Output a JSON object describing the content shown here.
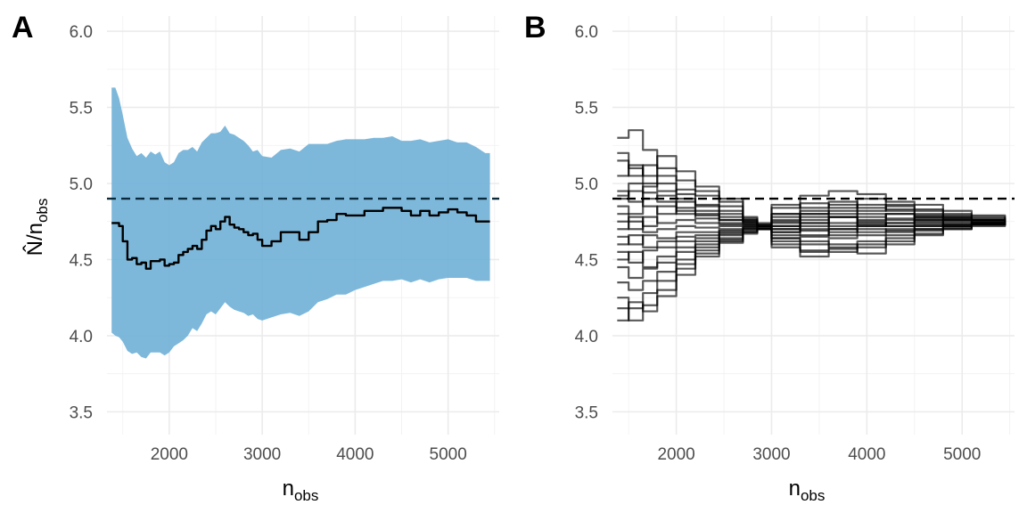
{
  "chart_data": [
    {
      "panel": "A",
      "type": "area",
      "xlabel": "n",
      "xlabel_sub": "obs",
      "ylabel": "N̂/n",
      "ylabel_sub": "obs",
      "xlim": [
        1330,
        5550
      ],
      "ylim": [
        3.35,
        6.1
      ],
      "x_ticks": [
        2000,
        3000,
        4000,
        5000
      ],
      "y_ticks": [
        3.5,
        4.0,
        4.5,
        5.0,
        5.5,
        6.0
      ],
      "x_tick_labels": [
        "2000",
        "3000",
        "4000",
        "5000"
      ],
      "y_tick_labels": [
        "3.5",
        "4.0",
        "4.5",
        "5.0",
        "5.5",
        "6.0"
      ],
      "grid": true,
      "reference_line": {
        "y": 4.9,
        "style": "dashed"
      },
      "band_color": "#6BAED6",
      "line_color": "#000000",
      "x": [
        1380,
        1420,
        1460,
        1500,
        1550,
        1600,
        1650,
        1700,
        1750,
        1800,
        1850,
        1900,
        1950,
        2000,
        2050,
        2100,
        2150,
        2200,
        2250,
        2300,
        2350,
        2400,
        2450,
        2500,
        2550,
        2600,
        2650,
        2700,
        2750,
        2800,
        2850,
        2900,
        2950,
        3000,
        3100,
        3200,
        3300,
        3400,
        3500,
        3600,
        3700,
        3800,
        3900,
        4000,
        4100,
        4200,
        4300,
        4400,
        4500,
        4600,
        4700,
        4800,
        4900,
        5000,
        5100,
        5200,
        5300,
        5400,
        5450
      ],
      "estimate": [
        4.74,
        4.74,
        4.72,
        4.62,
        4.5,
        4.51,
        4.47,
        4.48,
        4.44,
        4.49,
        4.49,
        4.5,
        4.46,
        4.47,
        4.48,
        4.53,
        4.55,
        4.57,
        4.59,
        4.57,
        4.63,
        4.69,
        4.72,
        4.7,
        4.75,
        4.78,
        4.73,
        4.71,
        4.7,
        4.68,
        4.66,
        4.67,
        4.63,
        4.59,
        4.62,
        4.68,
        4.68,
        4.63,
        4.68,
        4.75,
        4.76,
        4.8,
        4.79,
        4.79,
        4.82,
        4.82,
        4.84,
        4.84,
        4.82,
        4.79,
        4.82,
        4.79,
        4.81,
        4.83,
        4.81,
        4.79,
        4.75,
        4.75,
        4.75
      ],
      "upper": [
        5.63,
        5.63,
        5.56,
        5.45,
        5.3,
        5.23,
        5.18,
        5.2,
        5.17,
        5.21,
        5.19,
        5.21,
        5.14,
        5.12,
        5.14,
        5.2,
        5.22,
        5.22,
        5.24,
        5.21,
        5.27,
        5.3,
        5.33,
        5.33,
        5.34,
        5.38,
        5.33,
        5.32,
        5.3,
        5.28,
        5.25,
        5.21,
        5.22,
        5.18,
        5.17,
        5.22,
        5.23,
        5.21,
        5.26,
        5.26,
        5.26,
        5.28,
        5.29,
        5.29,
        5.29,
        5.3,
        5.3,
        5.31,
        5.28,
        5.28,
        5.29,
        5.27,
        5.28,
        5.29,
        5.27,
        5.27,
        5.24,
        5.2,
        5.2
      ],
      "lower": [
        4.02,
        4.0,
        3.99,
        3.96,
        3.9,
        3.88,
        3.89,
        3.86,
        3.85,
        3.89,
        3.89,
        3.89,
        3.87,
        3.89,
        3.93,
        3.95,
        3.97,
        4.0,
        4.05,
        4.03,
        4.08,
        4.14,
        4.16,
        4.14,
        4.18,
        4.22,
        4.19,
        4.17,
        4.16,
        4.15,
        4.13,
        4.14,
        4.11,
        4.1,
        4.12,
        4.14,
        4.15,
        4.13,
        4.16,
        4.22,
        4.24,
        4.27,
        4.27,
        4.3,
        4.32,
        4.34,
        4.36,
        4.36,
        4.37,
        4.35,
        4.37,
        4.35,
        4.37,
        4.38,
        4.38,
        4.38,
        4.36,
        4.36,
        4.36
      ]
    },
    {
      "panel": "B",
      "type": "line",
      "xlabel": "n",
      "xlabel_sub": "obs",
      "xlim": [
        1330,
        5550
      ],
      "ylim": [
        3.35,
        6.1
      ],
      "x_ticks": [
        2000,
        3000,
        4000,
        5000
      ],
      "y_ticks": [
        3.5,
        4.0,
        4.5,
        5.0,
        5.5,
        6.0
      ],
      "x_tick_labels": [
        "2000",
        "3000",
        "4000",
        "5000"
      ],
      "y_tick_labels": [
        "3.5",
        "4.0",
        "4.5",
        "5.0",
        "5.5",
        "6.0"
      ],
      "grid": true,
      "reference_line": {
        "y": 4.9,
        "style": "dashed"
      },
      "line_color": "#000000",
      "line_opacity": 0.65,
      "x": [
        1380,
        1500,
        1650,
        1800,
        2000,
        2200,
        2450,
        2700,
        2850,
        3000,
        3300,
        3600,
        3900,
        4200,
        4500,
        4800,
        5100,
        5450
      ],
      "series": [
        {
          "values": [
            5.3,
            5.35,
            5.22,
            5.1,
            5.02,
            4.95,
            4.88,
            4.75,
            4.7,
            4.8,
            4.87,
            4.84,
            4.9,
            4.85,
            4.83,
            4.8,
            4.78,
            4.75
          ]
        },
        {
          "values": [
            5.15,
            5.1,
            5.05,
            5.18,
            5.08,
            4.98,
            4.9,
            4.78,
            4.74,
            4.84,
            4.92,
            4.95,
            4.93,
            4.88,
            4.86,
            4.82,
            4.79,
            4.75
          ]
        },
        {
          "values": [
            5.05,
            5.12,
            5.0,
            4.95,
            4.96,
            4.92,
            4.85,
            4.77,
            4.73,
            4.76,
            4.8,
            4.86,
            4.82,
            4.86,
            4.82,
            4.78,
            4.77,
            4.75
          ]
        },
        {
          "values": [
            4.95,
            4.88,
            4.98,
            5.05,
            4.93,
            4.86,
            4.82,
            4.76,
            4.72,
            4.7,
            4.78,
            4.72,
            4.8,
            4.76,
            4.79,
            4.77,
            4.76,
            4.75
          ]
        },
        {
          "values": [
            4.9,
            4.95,
            4.85,
            4.8,
            4.88,
            4.82,
            4.78,
            4.75,
            4.73,
            4.68,
            4.72,
            4.78,
            4.76,
            4.8,
            4.78,
            4.79,
            4.76,
            4.75
          ]
        },
        {
          "values": [
            4.85,
            4.8,
            4.9,
            4.92,
            4.84,
            4.8,
            4.76,
            4.74,
            4.72,
            4.75,
            4.69,
            4.74,
            4.72,
            4.74,
            4.73,
            4.76,
            4.74,
            4.75
          ]
        },
        {
          "values": [
            4.8,
            4.75,
            4.72,
            4.85,
            4.8,
            4.77,
            4.74,
            4.73,
            4.72,
            4.8,
            4.76,
            4.7,
            4.75,
            4.72,
            4.75,
            4.73,
            4.74,
            4.75
          ]
        },
        {
          "values": [
            4.75,
            4.7,
            4.78,
            4.74,
            4.76,
            4.74,
            4.73,
            4.73,
            4.72,
            4.66,
            4.65,
            4.68,
            4.7,
            4.69,
            4.72,
            4.74,
            4.73,
            4.75
          ]
        },
        {
          "values": [
            4.7,
            4.78,
            4.68,
            4.7,
            4.72,
            4.71,
            4.72,
            4.72,
            4.71,
            4.72,
            4.82,
            4.78,
            4.73,
            4.77,
            4.74,
            4.72,
            4.74,
            4.75
          ]
        },
        {
          "values": [
            4.65,
            4.6,
            4.66,
            4.64,
            4.68,
            4.68,
            4.7,
            4.72,
            4.71,
            4.62,
            4.6,
            4.64,
            4.66,
            4.68,
            4.7,
            4.72,
            4.73,
            4.75
          ]
        },
        {
          "values": [
            4.6,
            4.66,
            4.58,
            4.62,
            4.65,
            4.66,
            4.69,
            4.71,
            4.7,
            4.64,
            4.55,
            4.57,
            4.6,
            4.64,
            4.69,
            4.71,
            4.73,
            4.75
          ]
        },
        {
          "values": [
            4.55,
            4.48,
            4.56,
            4.58,
            4.62,
            4.64,
            4.68,
            4.71,
            4.7,
            4.58,
            4.52,
            4.55,
            4.58,
            4.62,
            4.67,
            4.7,
            4.72,
            4.75
          ]
        },
        {
          "values": [
            4.5,
            4.55,
            4.45,
            4.52,
            4.58,
            4.62,
            4.67,
            4.7,
            4.7,
            4.6,
            4.56,
            4.6,
            4.54,
            4.6,
            4.66,
            4.7,
            4.73,
            4.75
          ]
        },
        {
          "values": [
            4.45,
            4.38,
            4.44,
            4.48,
            4.55,
            4.6,
            4.66,
            4.7,
            4.7,
            4.64,
            4.62,
            4.58,
            4.62,
            4.66,
            4.7,
            4.72,
            4.74,
            4.75
          ]
        },
        {
          "values": [
            4.35,
            4.3,
            4.36,
            4.42,
            4.5,
            4.58,
            4.64,
            4.69,
            4.7,
            4.7,
            4.66,
            4.7,
            4.68,
            4.7,
            4.72,
            4.73,
            4.74,
            4.75
          ]
        },
        {
          "values": [
            4.25,
            4.18,
            4.28,
            4.36,
            4.47,
            4.56,
            4.63,
            4.68,
            4.7,
            4.74,
            4.7,
            4.66,
            4.72,
            4.74,
            4.76,
            4.75,
            4.75,
            4.75
          ]
        },
        {
          "values": [
            4.18,
            4.1,
            4.2,
            4.3,
            4.44,
            4.54,
            4.62,
            4.68,
            4.7,
            4.78,
            4.74,
            4.78,
            4.74,
            4.72,
            4.77,
            4.76,
            4.75,
            4.75
          ]
        },
        {
          "values": [
            4.1,
            4.22,
            4.16,
            4.26,
            4.4,
            4.52,
            4.61,
            4.67,
            4.7,
            4.72,
            4.8,
            4.82,
            4.78,
            4.8,
            4.76,
            4.77,
            4.76,
            4.75
          ]
        },
        {
          "values": [
            5.2,
            5.05,
            5.12,
            5.0,
            4.9,
            4.85,
            4.8,
            4.76,
            4.72,
            4.86,
            4.84,
            4.88,
            4.84,
            4.82,
            4.8,
            4.78,
            4.76,
            4.75
          ]
        },
        {
          "values": [
            4.92,
            5.0,
            4.94,
            4.88,
            4.82,
            4.79,
            4.76,
            4.74,
            4.72,
            4.68,
            4.74,
            4.8,
            4.86,
            4.83,
            4.78,
            4.76,
            4.76,
            4.75
          ]
        }
      ]
    }
  ]
}
